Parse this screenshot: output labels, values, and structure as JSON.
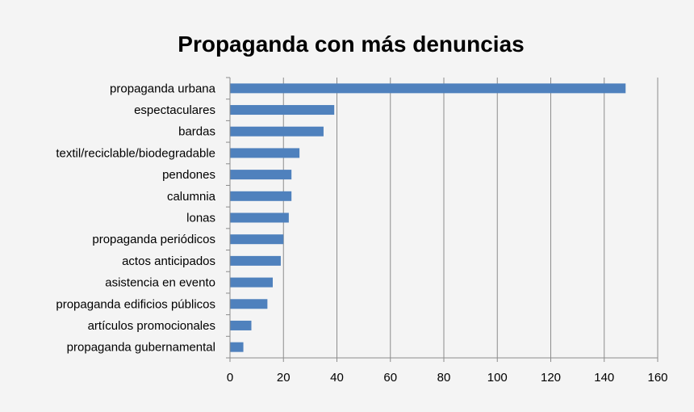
{
  "chart_data": {
    "type": "bar",
    "orientation": "horizontal",
    "title": "Propaganda con más denuncias",
    "xlabel": "",
    "ylabel": "",
    "categories": [
      "propaganda urbana",
      "espectaculares",
      "bardas",
      "textil/reciclable/biodegradable",
      "pendones",
      "calumnia",
      "lonas",
      "propaganda periódicos",
      "actos anticipados",
      "asistencia en evento",
      "propaganda edificios públicos",
      "artículos promocionales",
      "propaganda gubernamental"
    ],
    "values": [
      148,
      39,
      35,
      26,
      23,
      23,
      22,
      20,
      19,
      16,
      14,
      8,
      5
    ],
    "xlim": [
      0,
      160
    ],
    "xticks": [
      0,
      20,
      40,
      60,
      80,
      100,
      120,
      140,
      160
    ],
    "grid": "vertical",
    "legend": "none",
    "colors": {
      "bar": "#4f81bd",
      "grid": "#8c8c8c",
      "axis": "#8c8c8c",
      "background": "#f4f4f4"
    }
  }
}
